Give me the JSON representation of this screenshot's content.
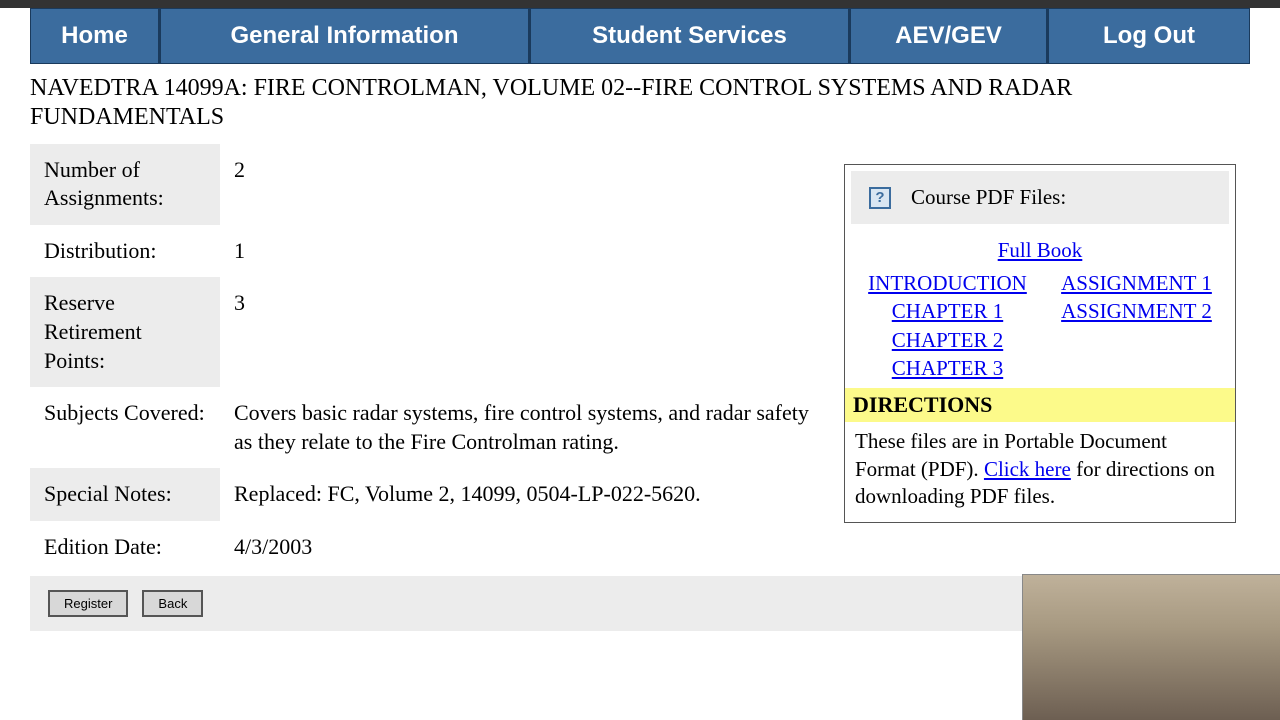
{
  "nav": {
    "home": "Home",
    "general_info": "General Information",
    "student_services": "Student Services",
    "aev_gev": "AEV/GEV",
    "log_out": "Log Out"
  },
  "course": {
    "title": "NAVEDTRA 14099A: FIRE CONTROLMAN, VOLUME 02--FIRE CONTROL SYSTEMS AND RADAR FUNDAMENTALS"
  },
  "info": {
    "rows": [
      {
        "label": "Number of Assignments:",
        "value": "2"
      },
      {
        "label": "Distribution:",
        "value": "1"
      },
      {
        "label": "Reserve Retirement Points:",
        "value": "3"
      },
      {
        "label": "Subjects Covered:",
        "value": "Covers basic radar systems, fire control systems, and radar safety as they relate to the Fire Controlman rating."
      },
      {
        "label": "Special Notes:",
        "value": "Replaced: FC, Volume 2, 14099, 0504-LP-022-5620."
      },
      {
        "label": "Edition Date:",
        "value": "4/3/2003"
      }
    ]
  },
  "buttons": {
    "register": "Register",
    "back": "Back"
  },
  "sidebar": {
    "header": "Course PDF Files:",
    "full_book": "Full Book",
    "col1": [
      "INTRODUCTION",
      "CHAPTER 1",
      "CHAPTER 2",
      "CHAPTER 3"
    ],
    "col2": [
      "ASSIGNMENT 1",
      "ASSIGNMENT 2"
    ],
    "directions_label": "DIRECTIONS",
    "directions_text_1": "These files are in Portable Document Format (PDF). ",
    "click_here": "Click here",
    "directions_text_2": " for directions on downloading PDF files."
  },
  "colors": {
    "nav_bg": "#3b6c9e",
    "nav_border": "#1a3a5c",
    "row_shade": "#ececec",
    "link": "#0000ee",
    "highlight": "#fcfa8a"
  }
}
